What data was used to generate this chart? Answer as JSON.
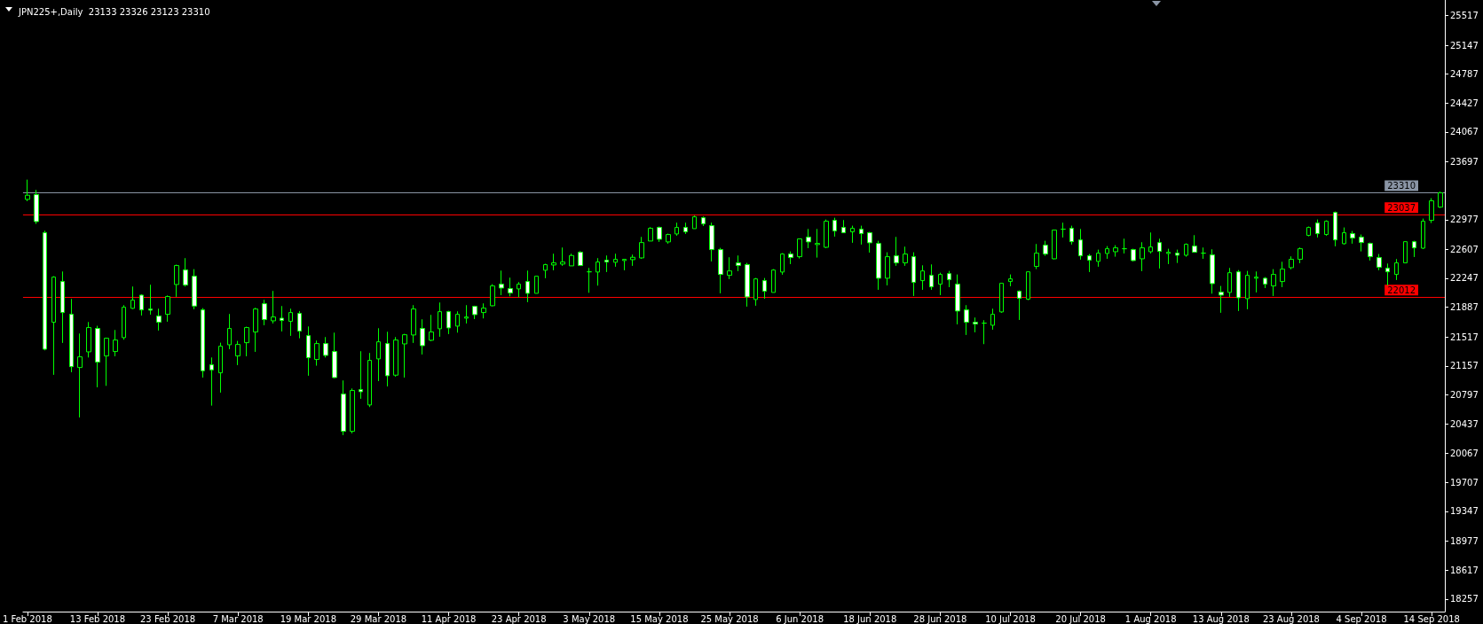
{
  "chart_data": {
    "type": "candlestick",
    "title": "JPN225+,Daily  23133 23326 23123 23310",
    "color": "#00ff00",
    "categories": [
      "1 Feb 2018",
      null,
      null,
      null,
      null,
      null,
      null,
      null,
      "13 Feb 2018",
      null,
      null,
      null,
      null,
      null,
      null,
      null,
      "23 Feb 2018",
      null,
      null,
      null,
      null,
      null,
      null,
      null,
      "7 Mar 2018",
      null,
      null,
      null,
      null,
      null,
      null,
      null,
      "19 Mar 2018",
      null,
      null,
      null,
      null,
      null,
      null,
      null,
      "29 Mar 2018",
      null,
      null,
      null,
      null,
      null,
      null,
      null,
      "11 Apr 2018",
      null,
      null,
      null,
      null,
      null,
      null,
      null,
      "23 Apr 2018",
      null,
      null,
      null,
      null,
      null,
      null,
      null,
      "3 May 2018",
      null,
      null,
      null,
      null,
      null,
      null,
      null,
      "15 May 2018",
      null,
      null,
      null,
      null,
      null,
      null,
      null,
      "25 May 2018",
      null,
      null,
      null,
      null,
      null,
      null,
      null,
      "6 Jun 2018",
      null,
      null,
      null,
      null,
      null,
      null,
      null,
      "18 Jun 2018",
      null,
      null,
      null,
      null,
      null,
      null,
      null,
      "28 Jun 2018",
      null,
      null,
      null,
      null,
      null,
      null,
      null,
      "10 Jul 2018",
      null,
      null,
      null,
      null,
      null,
      null,
      null,
      "20 Jul 2018",
      null,
      null,
      null,
      null,
      null,
      null,
      null,
      "1 Aug 2018",
      null,
      null,
      null,
      null,
      null,
      null,
      null,
      "13 Aug 2018",
      null,
      null,
      null,
      null,
      null,
      null,
      null,
      "23 Aug 2018",
      null,
      null,
      null,
      null,
      null,
      null,
      null,
      "4 Sep 2018",
      null,
      null,
      null,
      null,
      null,
      null,
      null,
      "14 Sep 2018",
      null
    ],
    "ohlc": [
      [
        23229,
        23475,
        23207,
        23281
      ],
      [
        23288,
        23347,
        22924,
        22953
      ],
      [
        22814,
        22839,
        21351,
        21365
      ],
      [
        21700,
        22273,
        21046,
        22262
      ],
      [
        22207,
        22332,
        21443,
        21821
      ],
      [
        21799,
        21990,
        21078,
        21148
      ],
      [
        21137,
        21560,
        20516,
        21270
      ],
      [
        21332,
        21703,
        21262,
        21634
      ],
      [
        21623,
        21656,
        20891,
        21204
      ],
      [
        21281,
        21509,
        20909,
        21501
      ],
      [
        21336,
        21604,
        21277,
        21479
      ],
      [
        21509,
        21913,
        21483,
        21887
      ],
      [
        21873,
        22145,
        21866,
        21975
      ],
      [
        22038,
        22049,
        21784,
        21854
      ],
      [
        21865,
        22167,
        21795,
        21851
      ],
      [
        21777,
        21869,
        21597,
        21700
      ],
      [
        21799,
        22034,
        21707,
        22020
      ],
      [
        22170,
        22417,
        22016,
        22406
      ],
      [
        22351,
        22498,
        22145,
        22163
      ],
      [
        22273,
        22361,
        21862,
        21902
      ],
      [
        21854,
        21876,
        21012,
        21097
      ],
      [
        21171,
        21262,
        20663,
        21108
      ],
      [
        21071,
        21446,
        20825,
        21402
      ],
      [
        21420,
        21803,
        21365,
        21623
      ],
      [
        21281,
        21468,
        21167,
        21424
      ],
      [
        21446,
        21645,
        21277,
        21634
      ],
      [
        21579,
        21880,
        21332,
        21865
      ],
      [
        21931,
        21979,
        21663,
        21733
      ],
      [
        21718,
        22090,
        21685,
        21766
      ],
      [
        21751,
        21902,
        21586,
        21722
      ],
      [
        21711,
        21869,
        21531,
        21821
      ],
      [
        21810,
        21840,
        21501,
        21590
      ],
      [
        21534,
        21648,
        21035,
        21259
      ],
      [
        21237,
        21472,
        21160,
        21435
      ],
      [
        21435,
        21516,
        21262,
        21288
      ],
      [
        21336,
        21571,
        21005,
        21012
      ],
      [
        20807,
        20976,
        20296,
        20343
      ],
      [
        20343,
        20876,
        20318,
        20851
      ],
      [
        20862,
        21340,
        20748,
        20836
      ],
      [
        20671,
        21318,
        20645,
        21226
      ],
      [
        21244,
        21626,
        20968,
        21457
      ],
      [
        21435,
        21582,
        20902,
        21035
      ],
      [
        21042,
        21516,
        21024,
        21479
      ],
      [
        21431,
        21556,
        21012,
        21545
      ],
      [
        21542,
        21913,
        21443,
        21865
      ],
      [
        21623,
        21737,
        21299,
        21409
      ],
      [
        21476,
        21792,
        21465,
        21579
      ],
      [
        21619,
        21946,
        21520,
        21832
      ],
      [
        21832,
        21843,
        21553,
        21630
      ],
      [
        21652,
        21836,
        21571,
        21799
      ],
      [
        21751,
        21913,
        21685,
        21766
      ],
      [
        21898,
        21906,
        21740,
        21795
      ],
      [
        21821,
        21935,
        21748,
        21876
      ],
      [
        21906,
        22174,
        21898,
        22152
      ],
      [
        22174,
        22343,
        22038,
        22126
      ],
      [
        22119,
        22255,
        22023,
        22064
      ],
      [
        22115,
        22200,
        22012,
        22174
      ],
      [
        22207,
        22343,
        21950,
        22060
      ],
      [
        22060,
        22273,
        22060,
        22273
      ],
      [
        22347,
        22428,
        22248,
        22417
      ],
      [
        22413,
        22553,
        22347,
        22439
      ],
      [
        22424,
        22630,
        22402,
        22450
      ],
      [
        22402,
        22553,
        22402,
        22531
      ],
      [
        22571,
        22586,
        22406,
        22406
      ],
      [
        22328,
        22376,
        22067,
        22328
      ],
      [
        22325,
        22498,
        22156,
        22450
      ],
      [
        22472,
        22531,
        22325,
        22450
      ],
      [
        22446,
        22553,
        22391,
        22483
      ],
      [
        22468,
        22483,
        22347,
        22483
      ],
      [
        22479,
        22542,
        22402,
        22509
      ],
      [
        22501,
        22762,
        22490,
        22692
      ],
      [
        22711,
        22884,
        22711,
        22869
      ],
      [
        22880,
        22891,
        22700,
        22733
      ],
      [
        22700,
        22803,
        22678,
        22792
      ],
      [
        22799,
        22939,
        22777,
        22880
      ],
      [
        22880,
        22939,
        22799,
        22825
      ],
      [
        22865,
        23027,
        22865,
        23012
      ],
      [
        23001,
        23016,
        22898,
        22924
      ],
      [
        22902,
        22939,
        22457,
        22604
      ],
      [
        22604,
        22626,
        22060,
        22295
      ],
      [
        22284,
        22509,
        22237,
        22339
      ],
      [
        22439,
        22531,
        22336,
        22406
      ],
      [
        22417,
        22439,
        21895,
        22016
      ],
      [
        21983,
        22251,
        21906,
        22240
      ],
      [
        22218,
        22251,
        21994,
        22086
      ],
      [
        22071,
        22361,
        22071,
        22350
      ],
      [
        22325,
        22560,
        22292,
        22549
      ],
      [
        22549,
        22582,
        22424,
        22505
      ],
      [
        22516,
        22737,
        22494,
        22737
      ],
      [
        22759,
        22861,
        22622,
        22700
      ],
      [
        22667,
        22861,
        22505,
        22681
      ],
      [
        22633,
        22979,
        22622,
        22957
      ],
      [
        22968,
        23001,
        22766,
        22836
      ],
      [
        22880,
        22972,
        22814,
        22814
      ],
      [
        22825,
        22902,
        22689,
        22869
      ],
      [
        22858,
        22902,
        22667,
        22803
      ],
      [
        22814,
        22825,
        22567,
        22689
      ],
      [
        22681,
        22714,
        22104,
        22248
      ],
      [
        22248,
        22571,
        22159,
        22516
      ],
      [
        22527,
        22762,
        22402,
        22439
      ],
      [
        22439,
        22641,
        22402,
        22549
      ],
      [
        22516,
        22571,
        22027,
        22196
      ],
      [
        22218,
        22409,
        22104,
        22339
      ],
      [
        22284,
        22420,
        22104,
        22141
      ],
      [
        22174,
        22317,
        22038,
        22295
      ],
      [
        22306,
        22339,
        22137,
        22229
      ],
      [
        22174,
        22295,
        21674,
        21840
      ],
      [
        21854,
        21913,
        21542,
        21700
      ],
      [
        21700,
        21759,
        21575,
        21678
      ],
      [
        21689,
        21726,
        21428,
        21689
      ],
      [
        21663,
        21869,
        21608,
        21799
      ],
      [
        21829,
        22185,
        21818,
        22185
      ],
      [
        22207,
        22295,
        22148,
        22240
      ],
      [
        22086,
        22097,
        21729,
        21998
      ],
      [
        21987,
        22328,
        21976,
        22328
      ],
      [
        22395,
        22674,
        22362,
        22560
      ],
      [
        22659,
        22714,
        22527,
        22549
      ],
      [
        22490,
        22847,
        22483,
        22847
      ],
      [
        22858,
        22939,
        22755,
        22858
      ],
      [
        22869,
        22902,
        22667,
        22703
      ],
      [
        22725,
        22861,
        22479,
        22527
      ],
      [
        22527,
        22549,
        22325,
        22472
      ],
      [
        22457,
        22604,
        22391,
        22560
      ],
      [
        22556,
        22648,
        22490,
        22615
      ],
      [
        22578,
        22659,
        22516,
        22626
      ],
      [
        22615,
        22740,
        22556,
        22615
      ],
      [
        22604,
        22615,
        22457,
        22468
      ],
      [
        22490,
        22696,
        22336,
        22626
      ],
      [
        22578,
        22817,
        22556,
        22637
      ],
      [
        22692,
        22740,
        22369,
        22582
      ],
      [
        22556,
        22615,
        22424,
        22571
      ],
      [
        22560,
        22604,
        22438,
        22534
      ],
      [
        22534,
        22681,
        22516,
        22670
      ],
      [
        22648,
        22784,
        22571,
        22571
      ],
      [
        22560,
        22630,
        22490,
        22560
      ],
      [
        22538,
        22608,
        22056,
        22181
      ],
      [
        22075,
        22152,
        21818,
        22038
      ],
      [
        22071,
        22376,
        22016,
        22317
      ],
      [
        22328,
        22350,
        21840,
        22005
      ],
      [
        21994,
        22339,
        21862,
        22284
      ],
      [
        22248,
        22332,
        22071,
        22262
      ],
      [
        22248,
        22262,
        22126,
        22174
      ],
      [
        22152,
        22361,
        22027,
        22295
      ],
      [
        22207,
        22453,
        22137,
        22361
      ],
      [
        22380,
        22520,
        22358,
        22483
      ],
      [
        22483,
        22630,
        22435,
        22615
      ],
      [
        22781,
        22891,
        22770,
        22880
      ],
      [
        22935,
        22979,
        22755,
        22803
      ],
      [
        22792,
        22968,
        22777,
        22957
      ],
      [
        23067,
        23078,
        22645,
        22725
      ],
      [
        22678,
        22880,
        22667,
        22814
      ],
      [
        22803,
        22836,
        22678,
        22748
      ],
      [
        22759,
        22792,
        22582,
        22692
      ],
      [
        22681,
        22692,
        22468,
        22516
      ],
      [
        22505,
        22549,
        22347,
        22384
      ],
      [
        22373,
        22431,
        22159,
        22328
      ],
      [
        22295,
        22487,
        22226,
        22439
      ],
      [
        22439,
        22703,
        22439,
        22703
      ],
      [
        22703,
        22714,
        22512,
        22626
      ],
      [
        22622,
        22990,
        22611,
        22957
      ],
      [
        22968,
        23244,
        22935,
        23211
      ],
      [
        23133,
        23326,
        23123,
        23310
      ]
    ],
    "ylim": [
      18100,
      25710
    ],
    "yticks": [
      18257,
      18617,
      18977,
      19347,
      19707,
      20067,
      20437,
      20797,
      21157,
      21517,
      21887,
      22247,
      22607,
      22977,
      23697,
      24067,
      24427,
      24787,
      25147,
      25517
    ],
    "ref_lines": [
      {
        "axis": "y",
        "value": 23310,
        "label": "23310",
        "color": "#8a95a5"
      },
      {
        "axis": "y",
        "value": 23037,
        "label": "23037",
        "color": "#ff0000"
      },
      {
        "axis": "y",
        "value": 22012,
        "label": "22012",
        "color": "#ff0000"
      }
    ],
    "grid": false
  }
}
